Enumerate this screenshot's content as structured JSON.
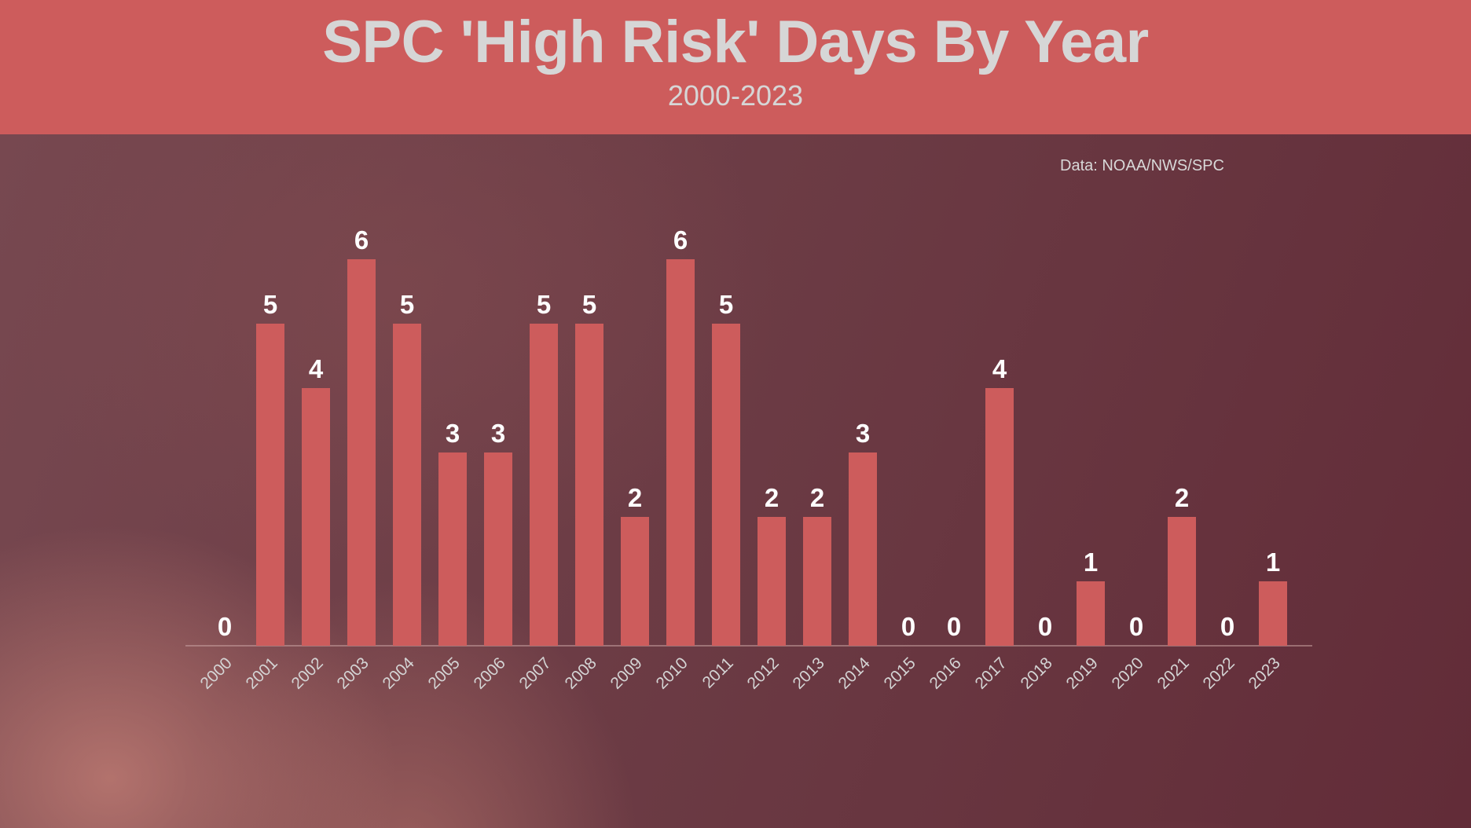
{
  "header": {
    "title": "SPC 'High Risk' Days By Year",
    "subtitle": "2000-2023"
  },
  "source": "Data: NOAA/NWS/SPC",
  "colors": {
    "header_bg": "#cd5c5c",
    "bar": "#cd5c5c",
    "title_text": "#d6d6d6",
    "value_label": "#ffffff",
    "background": "#6a3640"
  },
  "chart_data": {
    "type": "bar",
    "title": "SPC 'High Risk' Days By Year",
    "subtitle": "2000-2023",
    "annotation": "Data: NOAA/NWS/SPC",
    "xlabel": "",
    "ylabel": "",
    "ylim": [
      0,
      6
    ],
    "grid": false,
    "legend": null,
    "data_labels": true,
    "x_tick_rotation": -45,
    "categories": [
      "2000",
      "2001",
      "2002",
      "2003",
      "2004",
      "2005",
      "2006",
      "2007",
      "2008",
      "2009",
      "2010",
      "2011",
      "2012",
      "2013",
      "2014",
      "2015",
      "2016",
      "2017",
      "2018",
      "2019",
      "2020",
      "2021",
      "2022",
      "2023"
    ],
    "values": [
      0,
      5,
      4,
      6,
      5,
      3,
      3,
      5,
      5,
      2,
      6,
      5,
      2,
      2,
      3,
      0,
      0,
      4,
      0,
      1,
      0,
      2,
      0,
      1
    ]
  }
}
